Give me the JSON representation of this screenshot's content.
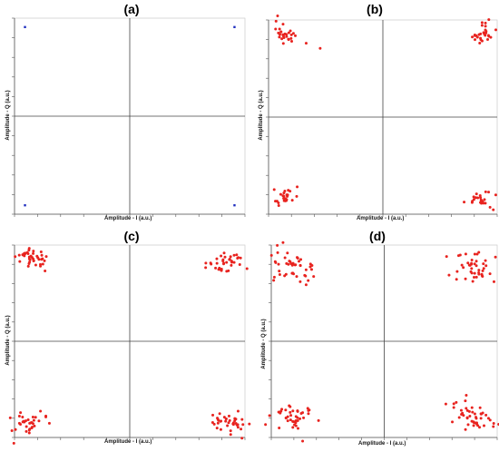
{
  "chart_data": [
    {
      "type": "scatter",
      "title": "(a)",
      "xlabel": "Amplitude - I (a.u.)",
      "ylabel": "Amplitude - Q (a.u.)",
      "point_color": "#1f2fbf",
      "clusters": [
        {
          "name": "",
          "spread": 0,
          "cx": -1,
          "cy": 1,
          "points": [
            [
              -1,
              1
            ]
          ]
        },
        {
          "name": "",
          "spread": 0,
          "cx": 1,
          "cy": 1,
          "points": [
            [
              1,
              1
            ]
          ]
        },
        {
          "name": "",
          "spread": 0,
          "cx": -1,
          "cy": -1,
          "points": [
            [
              -1,
              -1
            ]
          ]
        },
        {
          "name": "",
          "spread": 0,
          "cx": 1,
          "cy": -1,
          "points": [
            [
              1,
              -1
            ]
          ]
        }
      ],
      "xlim": [
        -1.1,
        1.1
      ],
      "ylim": [
        -1.1,
        1.1
      ],
      "grid": false
    },
    {
      "type": "scatter",
      "title": "(b)",
      "xlabel": "Amplitude - I (a.u.)",
      "ylabel": "Amplitude - Q (a.u.)",
      "point_color": "#e8231f",
      "clusters": [
        {
          "cx": -0.92,
          "cy": 0.93,
          "sx": 0.09,
          "sy": 0.05,
          "tilt": -0.5,
          "n": 30
        },
        {
          "cx": 0.95,
          "cy": 0.94,
          "sx": 0.08,
          "sy": 0.05,
          "tilt": 0.5,
          "n": 28
        },
        {
          "cx": -0.95,
          "cy": -0.92,
          "sx": 0.07,
          "sy": 0.04,
          "tilt": 0.5,
          "n": 24
        },
        {
          "cx": 0.93,
          "cy": -0.93,
          "sx": 0.07,
          "sy": 0.05,
          "tilt": -0.3,
          "n": 26
        }
      ],
      "xlim": [
        -1.1,
        1.1
      ],
      "ylim": [
        -1.1,
        1.1
      ],
      "grid": false
    },
    {
      "type": "scatter",
      "title": "(c)",
      "xlabel": "Amplitude - I (a.u.)",
      "ylabel": "Amplitude - Q (a.u.)",
      "point_color": "#e8231f",
      "clusters": [
        {
          "cx": -0.93,
          "cy": 0.95,
          "sx": 0.1,
          "sy": 0.06,
          "tilt": -0.6,
          "n": 40
        },
        {
          "cx": 0.92,
          "cy": 0.9,
          "sx": 0.09,
          "sy": 0.06,
          "tilt": 0.4,
          "n": 36
        },
        {
          "cx": -0.95,
          "cy": -0.91,
          "sx": 0.09,
          "sy": 0.05,
          "tilt": 0.4,
          "n": 34
        },
        {
          "cx": 0.95,
          "cy": -0.93,
          "sx": 0.1,
          "sy": 0.05,
          "tilt": -0.4,
          "n": 38
        }
      ],
      "xlim": [
        -1.1,
        1.1
      ],
      "ylim": [
        -1.1,
        1.1
      ],
      "grid": false
    },
    {
      "type": "scatter",
      "title": "(d)",
      "xlabel": "Amplitude - I (a.u.)",
      "ylabel": "Amplitude - Q (a.u.)",
      "point_color": "#e8231f",
      "clusters": [
        {
          "cx": -0.88,
          "cy": 0.85,
          "sx": 0.13,
          "sy": 0.09,
          "tilt": -0.6,
          "n": 48
        },
        {
          "cx": 0.88,
          "cy": 0.84,
          "sx": 0.12,
          "sy": 0.09,
          "tilt": 0.3,
          "n": 44
        },
        {
          "cx": -0.88,
          "cy": -0.87,
          "sx": 0.12,
          "sy": 0.07,
          "tilt": 0.4,
          "n": 42
        },
        {
          "cx": 0.86,
          "cy": -0.86,
          "sx": 0.13,
          "sy": 0.08,
          "tilt": -0.5,
          "n": 46
        }
      ],
      "xlim": [
        -1.1,
        1.1
      ],
      "ylim": [
        -1.1,
        1.1
      ],
      "grid": false
    }
  ]
}
